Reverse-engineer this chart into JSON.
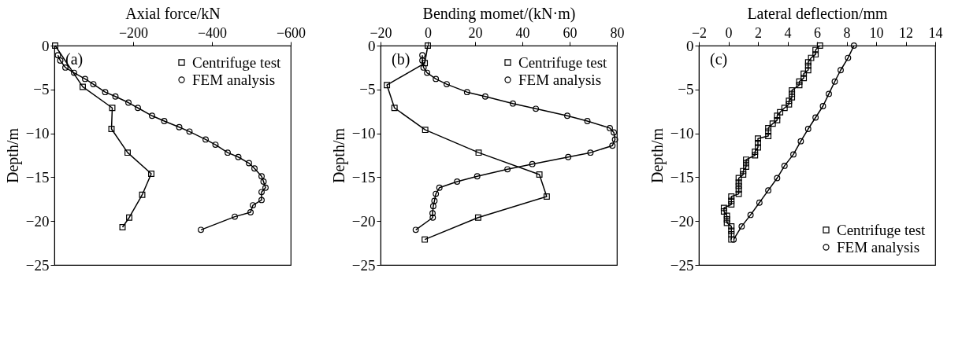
{
  "chart_data": [
    {
      "type": "line",
      "xlabel": "Axial force/kN",
      "ylabel": "Depth/m",
      "annotations": [
        "(a)"
      ],
      "legend": "top right",
      "line_style": "solid",
      "xlim": [
        0,
        -600
      ],
      "xticks": [
        -200,
        -400,
        -600
      ],
      "ylim": [
        -25,
        0
      ],
      "yticks": [
        0,
        -5,
        -10,
        -15,
        -20,
        -25
      ],
      "series": [
        {
          "name": "Centrifuge test",
          "color": "#000000",
          "marker": "square",
          "x": [
            -2,
            -72,
            -147,
            -145,
            -186,
            -246,
            -223,
            -190,
            -173
          ],
          "values": [
            0,
            -4.7,
            -7.1,
            -9.5,
            -12.2,
            -14.6,
            -17.0,
            -19.6,
            -20.7
          ]
        },
        {
          "name": "FEM analysis",
          "color": "#000000",
          "marker": "circle",
          "x": [
            -9,
            -15,
            -28,
            -50,
            -78,
            -99,
            -129,
            -155,
            -188,
            -212,
            -248,
            -279,
            -317,
            -343,
            -384,
            -409,
            -440,
            -467,
            -494,
            -508,
            -526,
            -531,
            -536,
            -526,
            -526,
            -504,
            -498,
            -458,
            -372
          ],
          "values": [
            -1.1,
            -1.7,
            -2.5,
            -3.1,
            -3.8,
            -4.4,
            -5.3,
            -5.8,
            -6.5,
            -7.1,
            -8.0,
            -8.6,
            -9.3,
            -9.8,
            -10.7,
            -11.3,
            -12.2,
            -12.7,
            -13.4,
            -14.0,
            -14.9,
            -15.5,
            -16.2,
            -16.7,
            -17.6,
            -18.2,
            -19.0,
            -19.5,
            -21.0
          ]
        }
      ]
    },
    {
      "type": "line",
      "xlabel": "Bending momet/(kN·m)",
      "ylabel": "Depth/m",
      "annotations": [
        "(b)"
      ],
      "legend": "top right",
      "line_style": "solid",
      "xlim": [
        -20,
        80
      ],
      "xticks": [
        -20,
        0,
        20,
        40,
        60,
        80
      ],
      "ylim": [
        -25,
        0
      ],
      "yticks": [
        0,
        -5,
        -10,
        -15,
        -20,
        -25
      ],
      "series": [
        {
          "name": "Centrifuge test",
          "color": "#000000",
          "marker": "square",
          "x": [
            0,
            -1.3,
            -17.3,
            -14.1,
            -1.1,
            21.5,
            47.2,
            50.3,
            21.3,
            -1.3
          ],
          "values": [
            0,
            -2.0,
            -4.5,
            -7.1,
            -9.6,
            -12.2,
            -14.7,
            -17.2,
            -19.6,
            -22.1
          ]
        },
        {
          "name": "FEM analysis",
          "color": "#000000",
          "marker": "circle",
          "x": [
            -2.3,
            -2.3,
            -1.8,
            -0.3,
            3.4,
            8.0,
            16.6,
            24.3,
            36.0,
            45.7,
            59.0,
            67.5,
            77.0,
            78.7,
            79.2,
            78.1,
            68.8,
            59.4,
            44.2,
            33.7,
            20.9,
            12.4,
            4.9,
            3.4,
            2.8,
            2.3,
            2.0,
            2.1,
            -5.1
          ],
          "values": [
            -1.1,
            -1.7,
            -2.5,
            -3.1,
            -3.8,
            -4.4,
            -5.3,
            -5.8,
            -6.6,
            -7.2,
            -8.0,
            -8.6,
            -9.4,
            -9.9,
            -10.7,
            -11.4,
            -12.2,
            -12.7,
            -13.5,
            -14.1,
            -14.9,
            -15.5,
            -16.2,
            -16.9,
            -17.7,
            -18.3,
            -19.1,
            -19.6,
            -21.0
          ]
        }
      ]
    },
    {
      "type": "line",
      "xlabel": "Lateral deflection/mm",
      "ylabel": "Depth/m",
      "annotations": [
        "(c)"
      ],
      "legend": "bottom right",
      "line_style": "solid",
      "xlim": [
        -2,
        14
      ],
      "xticks": [
        -2,
        0,
        2,
        4,
        6,
        8,
        10,
        12,
        14
      ],
      "ylim": [
        -25,
        0
      ],
      "yticks": [
        0,
        -5,
        -10,
        -15,
        -20,
        -25
      ],
      "series": [
        {
          "name": "Centrifuge test",
          "color": "#000000",
          "marker": "square",
          "x": [
            6.2,
            5.9,
            5.9,
            5.6,
            5.4,
            5.4,
            5.4,
            5.1,
            5.1,
            4.8,
            4.8,
            4.3,
            4.3,
            4.3,
            4.1,
            4.1,
            3.8,
            3.5,
            3.3,
            3.3,
            3.0,
            2.7,
            2.7,
            2.7,
            2.0,
            2.0,
            2.0,
            1.8,
            1.8,
            1.2,
            1.2,
            1.2,
            1.0,
            1.0,
            0.7,
            0.7,
            0.7,
            0.7,
            0.7,
            0.2,
            0.2,
            0.2,
            -0.3,
            -0.3,
            -0.1,
            -0.1,
            -0.1,
            0.2,
            0.2,
            0.2,
            0.2
          ],
          "values": [
            0,
            -0.5,
            -1.0,
            -1.4,
            -1.9,
            -2.3,
            -2.8,
            -3.2,
            -3.7,
            -4.1,
            -4.5,
            -5.1,
            -5.5,
            -5.9,
            -6.3,
            -6.7,
            -7.1,
            -7.6,
            -8.0,
            -8.5,
            -8.9,
            -9.4,
            -9.8,
            -10.3,
            -10.6,
            -11.1,
            -11.6,
            -12.1,
            -12.5,
            -13.0,
            -13.4,
            -13.8,
            -14.3,
            -14.7,
            -15.1,
            -15.6,
            -16.0,
            -16.4,
            -16.9,
            -17.2,
            -17.7,
            -18.1,
            -18.5,
            -18.9,
            -19.4,
            -19.8,
            -20.2,
            -20.6,
            -21.1,
            -21.5,
            -22.1
          ]
        },
        {
          "name": "FEM analysis",
          "color": "#000000",
          "marker": "circle",
          "x": [
            8.5,
            8.1,
            7.6,
            7.2,
            6.8,
            6.4,
            5.9,
            5.4,
            4.9,
            4.4,
            3.8,
            3.3,
            2.7,
            2.1,
            1.5,
            0.9,
            0.35
          ],
          "values": [
            0,
            -1.4,
            -2.8,
            -4.1,
            -5.5,
            -6.9,
            -8.2,
            -9.5,
            -10.9,
            -12.4,
            -13.7,
            -15.1,
            -16.5,
            -17.9,
            -19.3,
            -20.6,
            -22.1
          ]
        }
      ]
    }
  ]
}
